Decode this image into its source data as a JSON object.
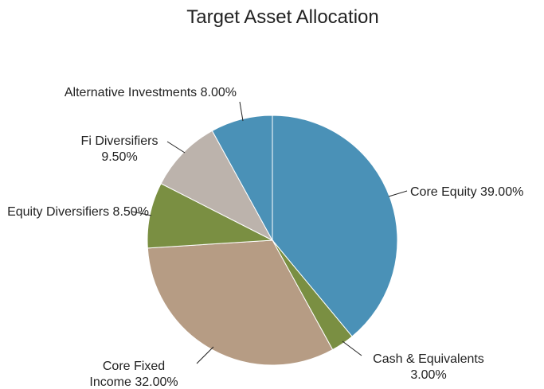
{
  "chart_data": {
    "type": "pie",
    "title": "Target Asset Allocation",
    "categories": [
      "Core Equity",
      "Cash & Equivalents",
      "Core Fixed Income",
      "Equity Diversifiers",
      "Fi Diversifiers",
      "Alternative Investments"
    ],
    "values": [
      39,
      3,
      32,
      8.5,
      9.5,
      8
    ],
    "value_labels": [
      "39.00%",
      "3.00%",
      "32.00%",
      "8.50%",
      "9.50%",
      "8.00%"
    ],
    "colors": [
      "#4a91b7",
      "#7a8f42",
      "#b69c84",
      "#7a8f42",
      "#bcb3ac",
      "#4a91b7"
    ]
  }
}
